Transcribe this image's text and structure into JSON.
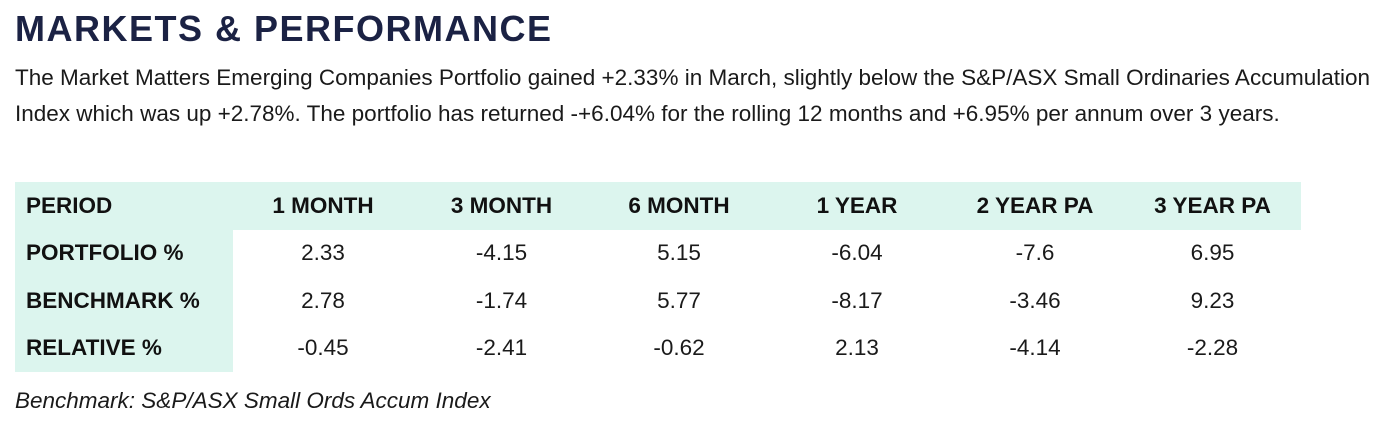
{
  "title": "MARKETS & PERFORMANCE",
  "intro": "The Market Matters Emerging Companies Portfolio gained +2.33% in March, slightly below the S&P/ASX Small Ordinaries Accumulation Index which was up +2.78%. The portfolio has returned -+6.04% for the rolling 12 months and +6.95% per annum over 3 years.",
  "table": {
    "headers": [
      "PERIOD",
      "1 MONTH",
      "3 MONTH",
      "6 MONTH",
      "1 YEAR",
      "2 YEAR PA",
      "3 YEAR PA"
    ],
    "rows": [
      {
        "label": "PORTFOLIO %",
        "values": [
          "2.33",
          "-4.15",
          "5.15",
          "-6.04",
          "-7.6",
          "6.95"
        ]
      },
      {
        "label": "BENCHMARK %",
        "values": [
          "2.78",
          "-1.74",
          "5.77",
          "-8.17",
          "-3.46",
          "9.23"
        ]
      },
      {
        "label": "RELATIVE %",
        "values": [
          "-0.45",
          "-2.41",
          "-0.62",
          "2.13",
          "-4.14",
          "-2.28"
        ]
      }
    ]
  },
  "footnote": "Benchmark: S&P/ASX Small Ords Accum Index",
  "colors": {
    "title": "#1b2244",
    "table_header_bg": "#dcf5ee"
  }
}
